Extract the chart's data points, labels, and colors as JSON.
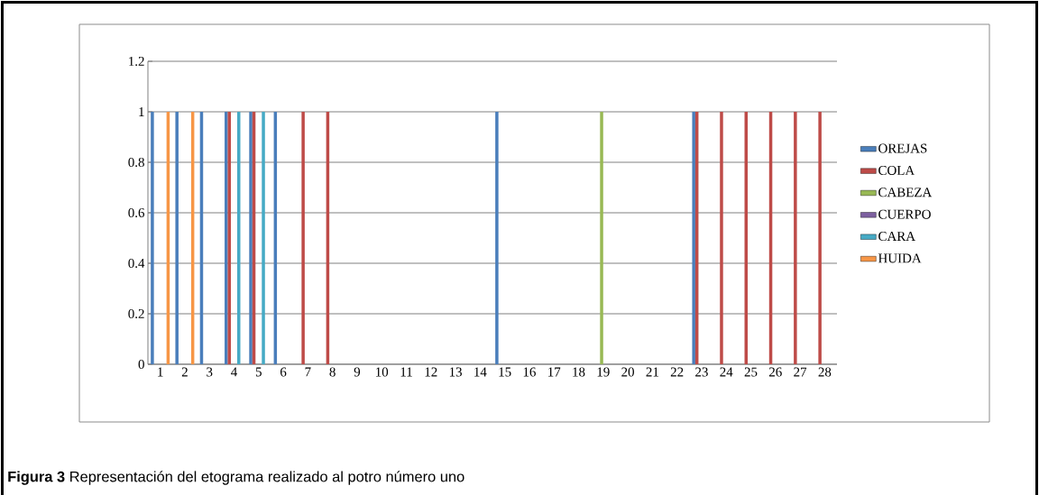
{
  "chart_data": {
    "type": "bar",
    "categories": [
      "1",
      "2",
      "3",
      "4",
      "5",
      "6",
      "7",
      "8",
      "9",
      "10",
      "11",
      "12",
      "13",
      "14",
      "15",
      "16",
      "17",
      "18",
      "19",
      "20",
      "21",
      "22",
      "23",
      "24",
      "25",
      "26",
      "27",
      "28"
    ],
    "series": [
      {
        "name": "OREJAS",
        "color": "#4a7ebb",
        "values": [
          1,
          1,
          1,
          1,
          1,
          1,
          0,
          0,
          0,
          0,
          0,
          0,
          0,
          0,
          1,
          0,
          0,
          0,
          0,
          0,
          0,
          0,
          1,
          0,
          0,
          0,
          0,
          0
        ]
      },
      {
        "name": "COLA",
        "color": "#be4b48",
        "values": [
          0,
          0,
          0,
          1,
          1,
          0,
          1,
          1,
          0,
          0,
          0,
          0,
          0,
          0,
          0,
          0,
          0,
          0,
          0,
          0,
          0,
          0,
          1,
          1,
          1,
          1,
          1,
          1
        ]
      },
      {
        "name": "CABEZA",
        "color": "#98b954",
        "values": [
          0,
          0,
          0,
          0,
          0,
          0,
          0,
          0,
          0,
          0,
          0,
          0,
          0,
          0,
          0,
          0,
          0,
          0,
          1,
          0,
          0,
          0,
          0,
          0,
          0,
          0,
          0,
          0
        ]
      },
      {
        "name": "CUERPO",
        "color": "#7d60a0",
        "values": [
          0,
          0,
          0,
          0,
          0,
          0,
          0,
          0,
          0,
          0,
          0,
          0,
          0,
          0,
          0,
          0,
          0,
          0,
          0,
          0,
          0,
          0,
          0,
          0,
          0,
          0,
          0,
          0
        ]
      },
      {
        "name": "CARA",
        "color": "#46aac5",
        "values": [
          0,
          0,
          0,
          1,
          1,
          0,
          0,
          0,
          0,
          0,
          0,
          0,
          0,
          0,
          0,
          0,
          0,
          0,
          0,
          0,
          0,
          0,
          0,
          0,
          0,
          0,
          0,
          0
        ]
      },
      {
        "name": "HUIDA",
        "color": "#f79646",
        "values": [
          1,
          1,
          0,
          0,
          0,
          0,
          0,
          0,
          0,
          0,
          0,
          0,
          0,
          0,
          0,
          0,
          0,
          0,
          0,
          0,
          0,
          0,
          0,
          0,
          0,
          0,
          0,
          0
        ]
      }
    ],
    "ylim": [
      0,
      1.2
    ],
    "yticks": [
      0,
      0.2,
      0.4,
      0.6,
      0.8,
      1,
      1.2
    ],
    "grid": "y",
    "legend": "right",
    "annotations": [
      "**Figura 3** Representación del etograma realizado al potro número uno"
    ]
  }
}
